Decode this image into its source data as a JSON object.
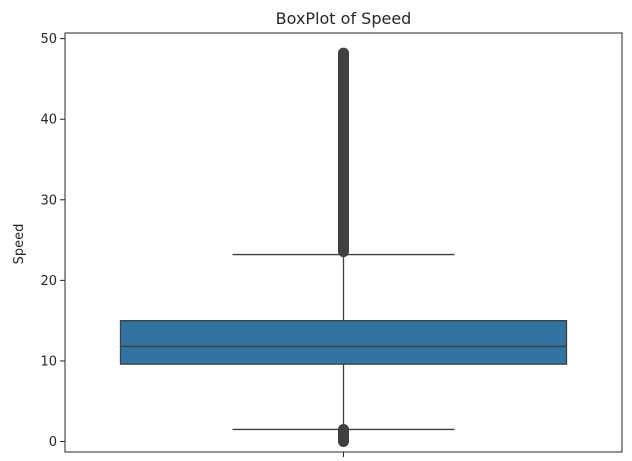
{
  "chart_data": {
    "type": "boxplot",
    "title": "BoxPlot of Speed",
    "xlabel": "",
    "ylabel": "Speed",
    "ylim": [
      -1.3,
      50.7
    ],
    "yticks": [
      0,
      10,
      20,
      30,
      40,
      50
    ],
    "ytick_labels": [
      "0",
      "10",
      "20",
      "30",
      "40",
      "50"
    ],
    "grid": false,
    "box": {
      "whisker_low": 1.5,
      "q1": 9.6,
      "median": 11.8,
      "q3": 15.0,
      "whisker_high": 23.2,
      "outliers_low_range": [
        0.0,
        1.5
      ],
      "outliers_high_range": [
        23.2,
        48.2
      ]
    },
    "colors": {
      "box_fill": "#3274a1",
      "lines": "#3f3f3f",
      "axes": "#262626"
    }
  }
}
